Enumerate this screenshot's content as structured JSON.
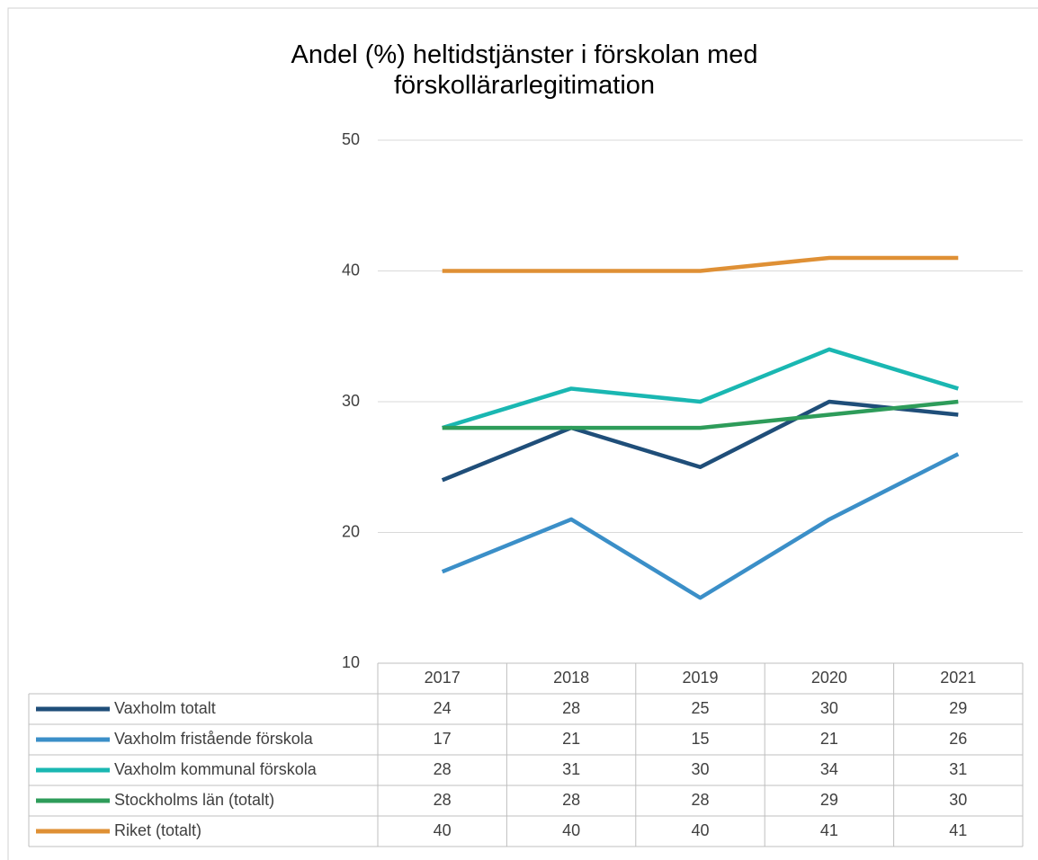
{
  "chart_data": {
    "type": "line",
    "title": "Andel (%) heltidstjänster i förskolan med förskollärarlegitimation",
    "categories": [
      "2017",
      "2018",
      "2019",
      "2020",
      "2021"
    ],
    "series": [
      {
        "name": "Vaxholm totalt",
        "color": "#1f4e79",
        "values": [
          24,
          28,
          25,
          30,
          29
        ]
      },
      {
        "name": "Vaxholm fristående förskola",
        "color": "#3b8fc8",
        "values": [
          17,
          21,
          15,
          21,
          26
        ]
      },
      {
        "name": "Vaxholm kommunal förskola",
        "color": "#1ab7b2",
        "values": [
          28,
          31,
          30,
          34,
          31
        ]
      },
      {
        "name": "Stockholms län (totalt)",
        "color": "#2e9c5a",
        "values": [
          28,
          28,
          28,
          29,
          30
        ]
      },
      {
        "name": "Riket (totalt)",
        "color": "#df9035",
        "values": [
          40,
          40,
          40,
          41,
          41
        ]
      }
    ],
    "ylim": [
      10,
      50
    ],
    "yticks": [
      10,
      20,
      30,
      40,
      50
    ],
    "grid": true
  }
}
